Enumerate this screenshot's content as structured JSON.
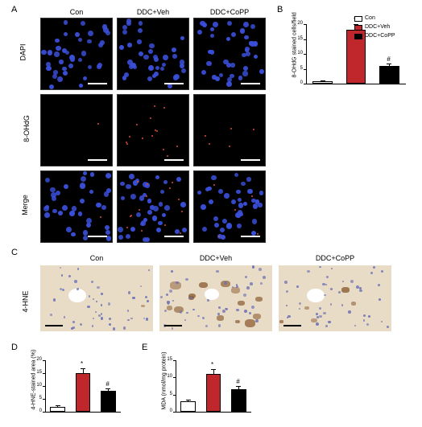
{
  "labels": {
    "A": "A",
    "B": "B",
    "C": "C",
    "D": "D",
    "E": "E",
    "con": "Con",
    "ddcveh": "DDC+Veh",
    "ddccopp": "DDC+CoPP",
    "dapi": "DAPI",
    "ohdg": "8-OHdG",
    "merge": "Merge",
    "hne": "4-HNE"
  },
  "fluo": {
    "dapi_color": "#3a4fd9",
    "ohdg_color": "#d94a3a",
    "bg": "#000000",
    "dapi_dots_per": 38,
    "ohdg_dots": {
      "con": 1,
      "veh": 14,
      "copp": 5
    },
    "dot_size": 5
  },
  "ihc": {
    "bg": "#e8dcc7",
    "nuc_color": "#6a6fb5",
    "stain_color": "#8a5a2f",
    "nuc_count": 45,
    "stain_amount": {
      "con": 1,
      "veh": 14,
      "copp": 5
    }
  },
  "chartB": {
    "ylabel": "8-OHdG stained cells/field",
    "ylim": [
      0,
      20
    ],
    "ytick_step": 5,
    "bars": [
      {
        "label": "Con",
        "value": 0.8,
        "err": 0.3,
        "fill": "#ffffff"
      },
      {
        "label": "DDC+Veh",
        "value": 18,
        "err": 2,
        "fill": "#c0272d",
        "sig": "*"
      },
      {
        "label": "DDC+CoPP",
        "value": 6,
        "err": 0.8,
        "fill": "#000000",
        "sig": "#"
      }
    ]
  },
  "chartD": {
    "ylabel": "4-HNE-stained area (%)",
    "ylim": [
      0,
      20
    ],
    "ytick_step": 5,
    "bars": [
      {
        "label": "Con",
        "value": 2,
        "err": 0.5,
        "fill": "#ffffff"
      },
      {
        "label": "DDC+Veh",
        "value": 15,
        "err": 2,
        "fill": "#c0272d",
        "sig": "*"
      },
      {
        "label": "DDC+CoPP",
        "value": 8,
        "err": 1,
        "fill": "#000000",
        "sig": "#"
      }
    ]
  },
  "chartE": {
    "ylabel": "MDA (nmol/mg protein)",
    "ylim": [
      0,
      15
    ],
    "ytick_step": 5,
    "bars": [
      {
        "label": "Con",
        "value": 3,
        "err": 0.4,
        "fill": "#ffffff"
      },
      {
        "label": "DDC+Veh",
        "value": 11,
        "err": 1.5,
        "fill": "#c0272d",
        "sig": "*"
      },
      {
        "label": "DDC+CoPP",
        "value": 6.5,
        "err": 1,
        "fill": "#000000",
        "sig": "#"
      }
    ]
  },
  "legend": [
    {
      "fill": "#ffffff",
      "label": "Con"
    },
    {
      "fill": "#c0272d",
      "label": "DDC+Veh"
    },
    {
      "fill": "#000000",
      "label": "DDC+CoPP"
    }
  ]
}
